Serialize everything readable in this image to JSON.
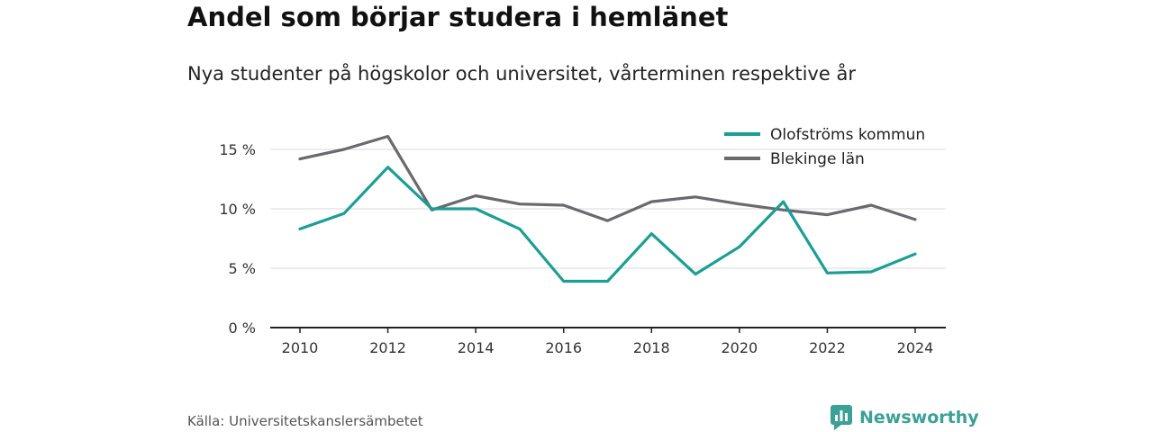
{
  "title": "Andel som börjar studera i hemlänet",
  "subtitle": "Nya studenter på högskolor och universitet, vårterminen respektive år",
  "source": "Källa: Universitetskanslersämbetet",
  "brand": {
    "name": "Newsworthy",
    "icon": "bar-chart-logo-icon",
    "color": "#3aa196"
  },
  "chart_data": {
    "type": "line",
    "x": [
      2010,
      2011,
      2012,
      2013,
      2014,
      2015,
      2016,
      2017,
      2018,
      2019,
      2020,
      2021,
      2022,
      2023,
      2024
    ],
    "x_tick_labels": [
      "2010",
      "2012",
      "2014",
      "2016",
      "2018",
      "2020",
      "2022",
      "2024"
    ],
    "x_ticks": [
      2010,
      2012,
      2014,
      2016,
      2018,
      2020,
      2022,
      2024
    ],
    "y_ticks": [
      0,
      5,
      10,
      15
    ],
    "y_tick_labels": [
      "0 %",
      "5 %",
      "10 %",
      "15 %"
    ],
    "ylim": [
      0,
      17.5
    ],
    "xlabel": "",
    "ylabel": "",
    "grid": true,
    "legend_position": "top-right",
    "series": [
      {
        "name": "Olofströms kommun",
        "color": "#1a9e96",
        "values": [
          8.3,
          9.6,
          13.5,
          10.0,
          10.0,
          8.3,
          3.9,
          3.9,
          7.9,
          4.5,
          6.8,
          10.6,
          4.6,
          4.7,
          6.2
        ]
      },
      {
        "name": "Blekinge län",
        "color": "#6b686e",
        "values": [
          14.2,
          15.0,
          16.1,
          9.9,
          11.1,
          10.4,
          10.3,
          9.0,
          10.6,
          11.0,
          10.4,
          9.9,
          9.5,
          10.3,
          9.1
        ]
      }
    ]
  }
}
